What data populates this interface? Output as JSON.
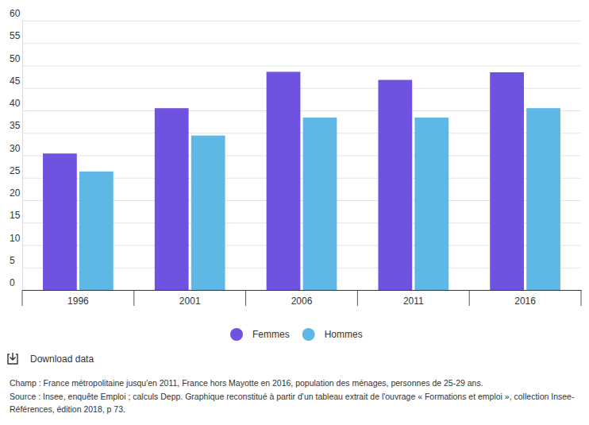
{
  "chart_data": {
    "type": "bar",
    "categories": [
      "1996",
      "2001",
      "2006",
      "2011",
      "2016"
    ],
    "series": [
      {
        "name": "Femmes",
        "color": "#7052e0",
        "values": [
          30.4,
          40.5,
          48.6,
          46.8,
          48.5
        ]
      },
      {
        "name": "Hommes",
        "color": "#5fb7e5",
        "values": [
          26.4,
          34.4,
          38.4,
          38.4,
          40.5
        ]
      }
    ],
    "ylim": [
      0,
      60
    ],
    "yticks": [
      0,
      5,
      10,
      15,
      20,
      25,
      30,
      35,
      40,
      45,
      50,
      55,
      60
    ],
    "grid": true,
    "legend": "bottom",
    "download_label": "Download data",
    "notes": [
      "Champ : France métropolitaine jusqu'en 2011, France hors Mayotte en 2016, population des ménages, personnes de 25-29 ans.",
      "Source : Insee, enquête Emploi ; calculs Depp. Graphique reconstitué à partir d'un tableau extrait de l'ouvrage « Formations et emploi », collection Insee-",
      "Références, édition 2018, p 73."
    ]
  }
}
